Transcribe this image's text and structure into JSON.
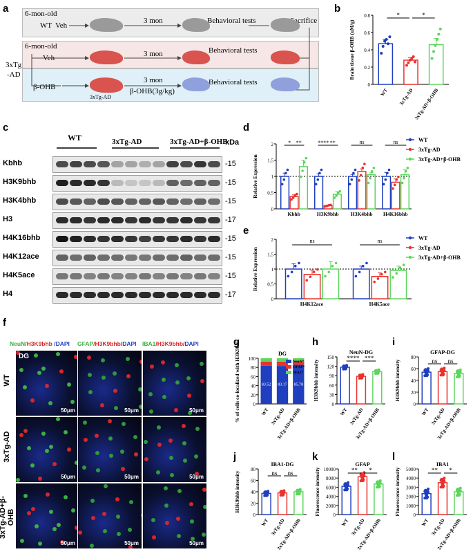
{
  "panel_labels": {
    "a": "a",
    "b": "b",
    "c": "c",
    "d": "d",
    "e": "e",
    "f": "f",
    "g": "g",
    "h": "h",
    "i": "i",
    "j": "j",
    "k": "k",
    "l": "l"
  },
  "scheme": {
    "wt_age": "6-mon-old",
    "wt_label": "WT",
    "veh": "Veh",
    "duration": "3 mon",
    "behavior": "Behavioral tests",
    "sacrifice": "Sacrifice",
    "ad_age": "6-mon-old",
    "ad_group": "3xTg",
    "ad_group2": "-AD",
    "bohb": "β-OHB",
    "bohb_dose": "β-OHB(3g/kg)",
    "mouse_caption": "3xTg-AD",
    "colors": {
      "row1": "#ececec",
      "row2": "#f7e6e6",
      "row3": "#dff0f8",
      "mouse_gray": "#9a9a9a",
      "mouse_red": "#d9534f",
      "mouse_blue": "#8fa0dd"
    }
  },
  "groups": [
    "WT",
    "3xTg-AD",
    "3xTg-AD+β-OHB"
  ],
  "blot": {
    "header_groups": [
      "WT",
      "3xTg-AD",
      "3xTg-AD+β-OHB"
    ],
    "kda_header": "kDa",
    "rows": [
      {
        "label": "Kbhb",
        "kda": "-15",
        "levels": [
          0.7,
          0.75,
          0.7,
          0.65,
          0.3,
          0.3,
          0.25,
          0.3,
          0.75,
          0.7,
          0.8,
          0.7
        ]
      },
      {
        "label": "H3K9bhb",
        "kda": "-15",
        "levels": [
          0.9,
          0.85,
          0.85,
          0.8,
          0.2,
          0.15,
          0.15,
          0.2,
          0.6,
          0.55,
          0.6,
          0.6
        ]
      },
      {
        "label": "H3K4bhb",
        "kda": "-15",
        "levels": [
          0.7,
          0.65,
          0.6,
          0.7,
          0.65,
          0.6,
          0.6,
          0.65,
          0.6,
          0.55,
          0.6,
          0.55
        ]
      },
      {
        "label": "H3",
        "kda": "-17",
        "levels": [
          0.85,
          0.85,
          0.8,
          0.85,
          0.85,
          0.8,
          0.85,
          0.8,
          0.8,
          0.85,
          0.8,
          0.8
        ]
      },
      {
        "label": "H4K16bhb",
        "kda": "-15",
        "levels": [
          0.95,
          0.9,
          0.85,
          0.8,
          0.85,
          0.8,
          0.75,
          0.8,
          0.8,
          0.85,
          0.8,
          0.85
        ]
      },
      {
        "label": "H4K12ace",
        "kda": "-15",
        "levels": [
          0.6,
          0.55,
          0.6,
          0.55,
          0.55,
          0.5,
          0.5,
          0.55,
          0.55,
          0.6,
          0.55,
          0.55
        ]
      },
      {
        "label": "H4K5ace",
        "kda": "-15",
        "levels": [
          0.5,
          0.5,
          0.45,
          0.5,
          0.45,
          0.45,
          0.5,
          0.45,
          0.5,
          0.45,
          0.5,
          0.45
        ]
      },
      {
        "label": "H4",
        "kda": "-17",
        "levels": [
          0.85,
          0.85,
          0.85,
          0.85,
          0.85,
          0.85,
          0.85,
          0.85,
          0.85,
          0.85,
          0.85,
          0.85
        ]
      }
    ]
  },
  "micro": {
    "headers": [
      {
        "parts": [
          {
            "t": "NeuN",
            "c": "#3cb043"
          },
          {
            "t": "/H3K9bhb",
            "c": "#d62728"
          },
          {
            "t": " /DAPI",
            "c": "#1f3fbf"
          }
        ]
      },
      {
        "parts": [
          {
            "t": "GFAP",
            "c": "#3cb043"
          },
          {
            "t": "/H3K9bhb",
            "c": "#d62728"
          },
          {
            "t": "/DAPI",
            "c": "#1f3fbf"
          }
        ]
      },
      {
        "parts": [
          {
            "t": "IBA1",
            "c": "#3cb043"
          },
          {
            "t": "/H3K9bhb",
            "c": "#d62728"
          },
          {
            "t": "/DAPI",
            "c": "#1f3fbf"
          }
        ]
      }
    ],
    "row_labels": [
      "WT",
      "3xTg-AD",
      "3xTg-AD+β-OHB"
    ],
    "dg_label": "DG",
    "scale": "50μm"
  },
  "chart_data": [
    {
      "id": "b",
      "type": "bar",
      "ylabel": "Brain tissue β-OHB (uM/g)",
      "ylim": [
        0,
        0.8
      ],
      "yticks": [
        0.0,
        0.2,
        0.4,
        0.6,
        0.8
      ],
      "categories": [
        "WT",
        "3xTg-AD",
        "3xTg-AD+β-OHB"
      ],
      "values": [
        0.47,
        0.28,
        0.46
      ],
      "errors": [
        0.05,
        0.03,
        0.07
      ],
      "points": [
        [
          0.36,
          0.44,
          0.5,
          0.52,
          0.47,
          0.55
        ],
        [
          0.22,
          0.25,
          0.28,
          0.3,
          0.32,
          0.26
        ],
        [
          0.3,
          0.38,
          0.45,
          0.52,
          0.58,
          0.64
        ]
      ],
      "significance": [
        {
          "from": 0,
          "to": 1,
          "label": "*"
        },
        {
          "from": 1,
          "to": 2,
          "label": "*"
        }
      ],
      "colors": [
        "#1f3fbf",
        "#e8322d",
        "#5cd65c"
      ]
    },
    {
      "id": "d",
      "type": "bar",
      "ylabel": "Relative Expression",
      "ylim": [
        0,
        2.0
      ],
      "yticks": [
        0.0,
        0.5,
        1.0,
        1.5,
        2.0
      ],
      "categories": [
        "Kbhb",
        "H3K9bhb",
        "H3K4bhb",
        "H4K16bhb"
      ],
      "series": [
        {
          "name": "WT",
          "values": [
            1.0,
            1.0,
            1.0,
            1.0
          ],
          "errors": [
            0.1,
            0.08,
            0.06,
            0.12
          ]
        },
        {
          "name": "3xTg-AD",
          "values": [
            0.38,
            0.1,
            1.15,
            0.82
          ],
          "errors": [
            0.05,
            0.02,
            0.08,
            0.1
          ]
        },
        {
          "name": "3xTg-AD+β-OHB",
          "values": [
            1.3,
            0.45,
            1.05,
            1.05
          ],
          "errors": [
            0.2,
            0.08,
            0.06,
            0.15
          ]
        }
      ],
      "significance": [
        {
          "label": "*"
        },
        {
          "label": "**"
        },
        {
          "label": "****"
        },
        {
          "label": "**"
        },
        {
          "label": "ns"
        },
        {
          "label": "ns"
        }
      ],
      "colors": [
        "#1f3fbf",
        "#e8322d",
        "#5cd65c"
      ]
    },
    {
      "id": "e",
      "type": "bar",
      "ylabel": "Relative Expression",
      "ylim": [
        0,
        2.0
      ],
      "yticks": [
        0.0,
        0.5,
        1.0,
        1.5,
        2.0
      ],
      "categories": [
        "H4K12ace",
        "H4K5ace"
      ],
      "series": [
        {
          "name": "WT",
          "values": [
            1.0,
            1.0
          ],
          "errors": [
            0.18,
            0.1
          ]
        },
        {
          "name": "3xTg-AD",
          "values": [
            0.82,
            0.75
          ],
          "errors": [
            0.15,
            0.12
          ]
        },
        {
          "name": "3xTg-AD+β-OHB",
          "values": [
            1.0,
            0.95
          ],
          "errors": [
            0.25,
            0.15
          ]
        }
      ],
      "significance": [
        {
          "label": "ns"
        },
        {
          "label": "ns"
        }
      ],
      "colors": [
        "#1f3fbf",
        "#e8322d",
        "#5cd65c"
      ]
    },
    {
      "id": "g",
      "type": "bar",
      "title": "DG",
      "ylabel": "% of cells co-localized with H3K9bhb",
      "ylim": [
        0,
        100
      ],
      "yticks": [
        0,
        20,
        40,
        60,
        80,
        100
      ],
      "categories": [
        "WT",
        "3xTg-AD",
        "3xTg-AD+β-OHB"
      ],
      "series": [
        {
          "name": "NeuN⁺",
          "values": [
            83.52,
            83.17,
            85.78
          ]
        },
        {
          "name": "GFAP⁺",
          "values": [
            9,
            9.5,
            8
          ]
        },
        {
          "name": "IBA1⁺",
          "values": [
            7.48,
            7.33,
            6.22
          ]
        }
      ],
      "labels": [
        "83.52",
        "83.17",
        "85.78"
      ],
      "colors": [
        "#1f3fbf",
        "#e8322d",
        "#5cd65c"
      ]
    },
    {
      "id": "h",
      "type": "bar",
      "title": "NeuN-DG",
      "ylabel": "H3K9bhb intensity",
      "ylim": [
        0,
        150
      ],
      "yticks": [
        0,
        30,
        60,
        90,
        120,
        150
      ],
      "categories": [
        "WT",
        "3xTg-AD",
        "3xTg-AD+β-OHB"
      ],
      "values": [
        117,
        88,
        103
      ],
      "errors": [
        3,
        3,
        3
      ],
      "significance": [
        {
          "from": 0,
          "to": 1,
          "label": "****"
        },
        {
          "from": 1,
          "to": 2,
          "label": "***"
        }
      ],
      "colors": [
        "#1f3fbf",
        "#e8322d",
        "#5cd65c"
      ]
    },
    {
      "id": "i",
      "type": "bar",
      "title": "GFAP-DG",
      "ylabel": "H3K9bhb intensity",
      "ylim": [
        0,
        80
      ],
      "yticks": [
        0,
        20,
        40,
        60,
        80
      ],
      "categories": [
        "WT",
        "3xTg-AD",
        "3xTg-AD+β-OHB"
      ],
      "values": [
        54,
        55,
        52
      ],
      "errors": [
        3,
        3,
        3
      ],
      "significance": [
        {
          "from": 0,
          "to": 1,
          "label": "ns"
        },
        {
          "from": 1,
          "to": 2,
          "label": "ns"
        }
      ],
      "colors": [
        "#1f3fbf",
        "#e8322d",
        "#5cd65c"
      ]
    },
    {
      "id": "j",
      "type": "bar",
      "title": "IBA1-DG",
      "ylabel": "H3K9bhb intensity",
      "ylim": [
        0,
        80
      ],
      "yticks": [
        0,
        20,
        40,
        60,
        80
      ],
      "categories": [
        "WT",
        "3xTg-AD",
        "3xTg-AD+β-OHB"
      ],
      "values": [
        37,
        38,
        40
      ],
      "errors": [
        2,
        2,
        2
      ],
      "significance": [
        {
          "from": 0,
          "to": 1,
          "label": "ns"
        },
        {
          "from": 1,
          "to": 2,
          "label": "ns"
        }
      ],
      "colors": [
        "#1f3fbf",
        "#e8322d",
        "#5cd65c"
      ]
    },
    {
      "id": "k",
      "type": "bar",
      "title": "GFAP",
      "ylabel": "Fluorescence intensity",
      "ylim": [
        0,
        10000
      ],
      "yticks": [
        0,
        2000,
        4000,
        6000,
        8000,
        10000
      ],
      "categories": [
        "WT",
        "3xTg-AD",
        "3xTg-AD+β-OHB"
      ],
      "values": [
        6200,
        8300,
        6700
      ],
      "errors": [
        400,
        450,
        350
      ],
      "significance": [
        {
          "from": 0,
          "to": 1,
          "label": "**"
        },
        {
          "from": 1,
          "to": 2,
          "label": "*"
        }
      ],
      "colors": [
        "#1f3fbf",
        "#e8322d",
        "#5cd65c"
      ]
    },
    {
      "id": "l",
      "type": "bar",
      "title": "IBA1",
      "ylabel": "Fluorescence intensity",
      "ylim": [
        0,
        5000
      ],
      "yticks": [
        0,
        1000,
        2000,
        3000,
        4000,
        5000
      ],
      "categories": [
        "WT",
        "3xTg-AD",
        "3xTg-AD+β-OHB"
      ],
      "values": [
        2300,
        3500,
        2500
      ],
      "errors": [
        250,
        250,
        200
      ],
      "significance": [
        {
          "from": 0,
          "to": 1,
          "label": "**"
        },
        {
          "from": 1,
          "to": 2,
          "label": "*"
        }
      ],
      "colors": [
        "#1f3fbf",
        "#e8322d",
        "#5cd65c"
      ]
    }
  ]
}
